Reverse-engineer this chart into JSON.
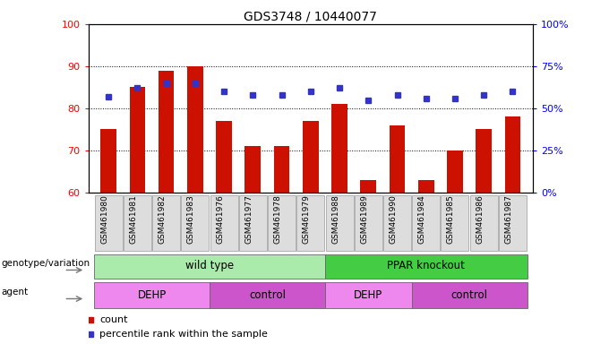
{
  "title": "GDS3748 / 10440077",
  "samples": [
    "GSM461980",
    "GSM461981",
    "GSM461982",
    "GSM461983",
    "GSM461976",
    "GSM461977",
    "GSM461978",
    "GSM461979",
    "GSM461988",
    "GSM461989",
    "GSM461990",
    "GSM461984",
    "GSM461985",
    "GSM461986",
    "GSM461987"
  ],
  "counts": [
    75,
    85,
    89,
    90,
    77,
    71,
    71,
    77,
    81,
    63,
    76,
    63,
    70,
    75,
    78
  ],
  "percentile_ranks": [
    57,
    62,
    65,
    65,
    60,
    58,
    58,
    60,
    62,
    55,
    58,
    56,
    56,
    58,
    60
  ],
  "ylim_left": [
    60,
    100
  ],
  "ylim_right": [
    0,
    100
  ],
  "yticks_left": [
    60,
    70,
    80,
    90,
    100
  ],
  "yticks_right": [
    0,
    25,
    50,
    75,
    100
  ],
  "ytick_labels_right": [
    "0%",
    "25%",
    "50%",
    "75%",
    "100%"
  ],
  "bar_color": "#cc1100",
  "dot_color": "#3333cc",
  "bg_color": "#ffffff",
  "genotype_groups": [
    {
      "label": "wild type",
      "start": 0,
      "end": 8,
      "color": "#aaeaaa"
    },
    {
      "label": "PPAR knockout",
      "start": 8,
      "end": 15,
      "color": "#44cc44"
    }
  ],
  "agent_groups": [
    {
      "label": "DEHP",
      "start": 0,
      "end": 4,
      "color": "#ee88ee"
    },
    {
      "label": "control",
      "start": 4,
      "end": 8,
      "color": "#cc55cc"
    },
    {
      "label": "DEHP",
      "start": 8,
      "end": 11,
      "color": "#ee88ee"
    },
    {
      "label": "control",
      "start": 11,
      "end": 15,
      "color": "#cc55cc"
    }
  ],
  "genotype_label": "genotype/variation",
  "agent_label": "agent",
  "legend_items": [
    {
      "color": "#cc1100",
      "label": "count"
    },
    {
      "color": "#3333cc",
      "label": "percentile rank within the sample"
    }
  ]
}
